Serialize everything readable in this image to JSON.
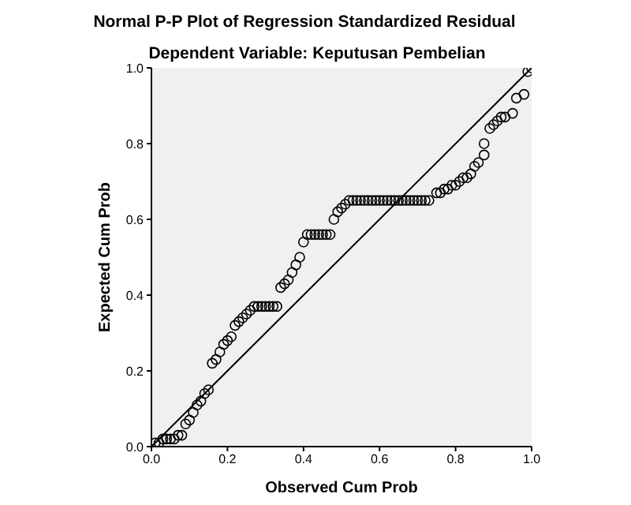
{
  "chart_data": {
    "type": "scatter",
    "title": "Normal P-P Plot of Regression Standardized Residual",
    "subtitle": "Dependent Variable: Keputusan Pembelian",
    "xlabel": "Observed Cum Prob",
    "ylabel": "Expected Cum Prob",
    "xlim": [
      0,
      1
    ],
    "ylim": [
      0,
      1
    ],
    "xticks": [
      {
        "value": 0,
        "label": "0.0"
      },
      {
        "value": 0.2,
        "label": "0.2"
      },
      {
        "value": 0.4,
        "label": "0.4"
      },
      {
        "value": 0.6,
        "label": "0.6"
      },
      {
        "value": 0.8,
        "label": "0.8"
      },
      {
        "value": 1,
        "label": "1.0"
      }
    ],
    "yticks": [
      {
        "value": 0,
        "label": "0.0"
      },
      {
        "value": 0.2,
        "label": "0.2"
      },
      {
        "value": 0.4,
        "label": "0.4"
      },
      {
        "value": 0.6,
        "label": "0.6"
      },
      {
        "value": 0.8,
        "label": "0.8"
      },
      {
        "value": 1,
        "label": "1.0"
      }
    ],
    "grid": false,
    "legend": false,
    "series": [
      {
        "marker": "circle",
        "color": "#000000",
        "x": [
          0.01,
          0.02,
          0.03,
          0.04,
          0.05,
          0.06,
          0.07,
          0.08,
          0.09,
          0.1,
          0.11,
          0.12,
          0.13,
          0.14,
          0.15,
          0.16,
          0.17,
          0.18,
          0.19,
          0.2,
          0.21,
          0.22,
          0.23,
          0.24,
          0.25,
          0.26,
          0.27,
          0.28,
          0.29,
          0.3,
          0.31,
          0.32,
          0.33,
          0.34,
          0.35,
          0.36,
          0.37,
          0.38,
          0.39,
          0.4,
          0.41,
          0.42,
          0.43,
          0.44,
          0.45,
          0.46,
          0.47,
          0.48,
          0.49,
          0.5,
          0.51,
          0.52,
          0.53,
          0.54,
          0.55,
          0.56,
          0.57,
          0.58,
          0.59,
          0.6,
          0.61,
          0.62,
          0.63,
          0.64,
          0.65,
          0.66,
          0.67,
          0.68,
          0.69,
          0.7,
          0.71,
          0.72,
          0.73,
          0.75,
          0.76,
          0.77,
          0.78,
          0.79,
          0.8,
          0.81,
          0.82,
          0.83,
          0.84,
          0.85,
          0.86,
          0.875,
          0.875,
          0.89,
          0.9,
          0.91,
          0.92,
          0.93,
          0.95,
          0.96,
          0.98,
          0.99,
          1.0
        ],
        "values": [
          0.01,
          0.01,
          0.02,
          0.02,
          0.02,
          0.02,
          0.03,
          0.03,
          0.06,
          0.07,
          0.09,
          0.11,
          0.12,
          0.14,
          0.15,
          0.22,
          0.23,
          0.25,
          0.27,
          0.28,
          0.29,
          0.32,
          0.33,
          0.34,
          0.35,
          0.36,
          0.37,
          0.37,
          0.37,
          0.37,
          0.37,
          0.37,
          0.37,
          0.42,
          0.43,
          0.44,
          0.46,
          0.48,
          0.5,
          0.54,
          0.56,
          0.56,
          0.56,
          0.56,
          0.56,
          0.56,
          0.56,
          0.6,
          0.62,
          0.63,
          0.64,
          0.65,
          0.65,
          0.65,
          0.65,
          0.65,
          0.65,
          0.65,
          0.65,
          0.65,
          0.65,
          0.65,
          0.65,
          0.65,
          0.65,
          0.65,
          0.65,
          0.65,
          0.65,
          0.65,
          0.65,
          0.65,
          0.65,
          0.67,
          0.67,
          0.68,
          0.68,
          0.69,
          0.69,
          0.7,
          0.71,
          0.71,
          0.72,
          0.74,
          0.75,
          0.77,
          0.8,
          0.84,
          0.85,
          0.86,
          0.87,
          0.87,
          0.88,
          0.92,
          0.93,
          0.99,
          1.0
        ]
      },
      {
        "type": "line",
        "color": "#000000",
        "x": [
          0,
          1
        ],
        "values": [
          0,
          1
        ]
      }
    ]
  }
}
